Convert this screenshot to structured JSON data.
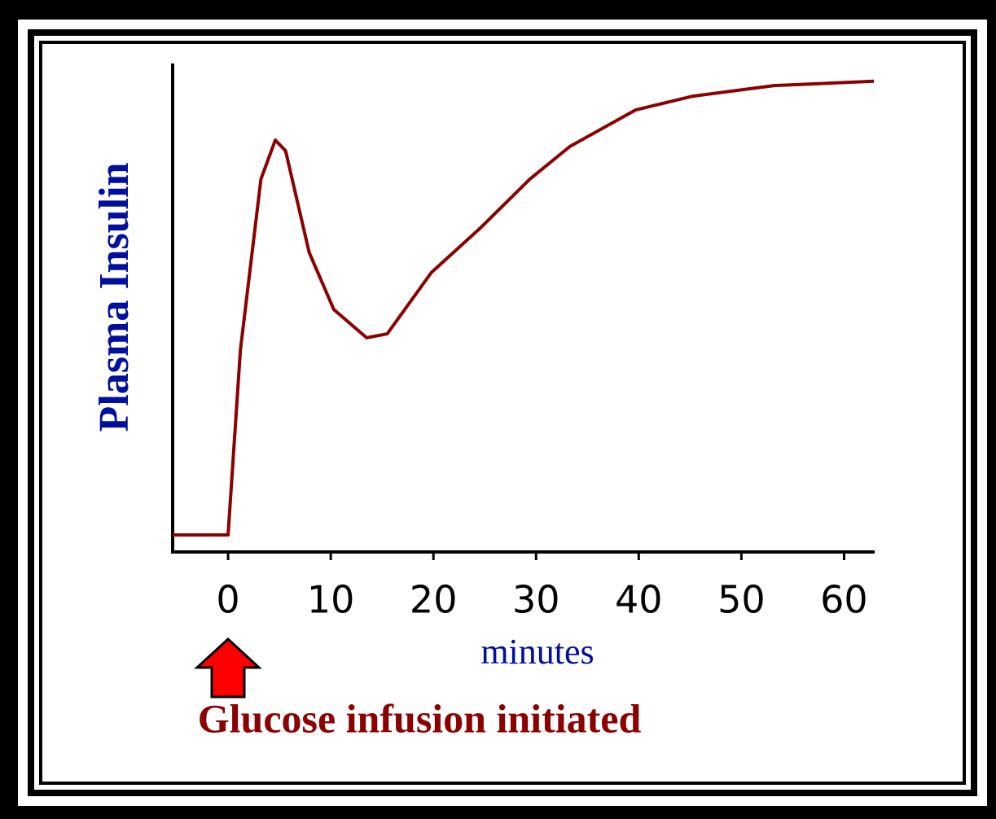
{
  "chart_data": {
    "type": "line",
    "y_label": "Plasma Insulin",
    "x_label": "minutes",
    "annotation": "Glucose infusion initiated",
    "x": [
      -5.4,
      0,
      1.2,
      3.2,
      4.6,
      5.6,
      7.9,
      10.3,
      13.5,
      15.5,
      19.8,
      24.6,
      29.4,
      33.3,
      39.7,
      45.2,
      53.2,
      62.9
    ],
    "values": [
      3.5,
      3.5,
      41.5,
      76.6,
      84.6,
      82.4,
      61.5,
      49.8,
      44,
      44.8,
      57.4,
      66.6,
      76.6,
      83.3,
      90.8,
      93.6,
      95.8,
      96.7
    ],
    "color": "#8b0000",
    "xlim": [
      -5.4,
      62.9
    ],
    "xticks": [
      0,
      10,
      20,
      30,
      40,
      50,
      60
    ],
    "ylim": [
      0,
      100
    ]
  }
}
